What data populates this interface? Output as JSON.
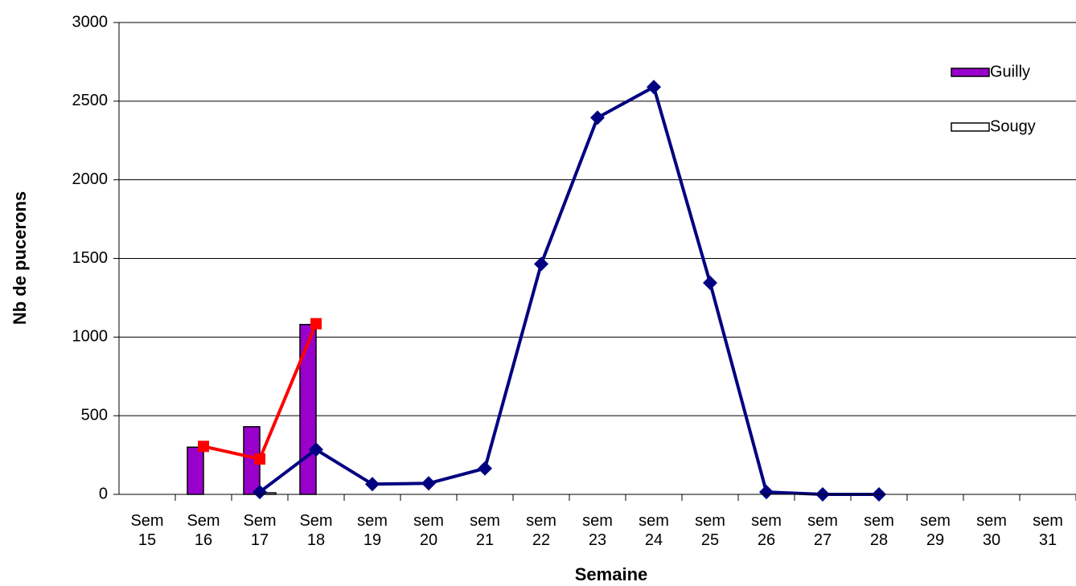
{
  "chart_data": {
    "type": "bar",
    "x_label": "Semaine",
    "y_label": "Nb de pucerons",
    "categories": [
      "Sem 15",
      "Sem 16",
      "Sem 17",
      "Sem 18",
      "sem 19",
      "sem 20",
      "sem 21",
      "sem 22",
      "sem 23",
      "sem 24",
      "sem 25",
      "sem 26",
      "sem 27",
      "sem 28",
      "sem 29",
      "sem 30",
      "sem 31"
    ],
    "series": [
      {
        "name": "Guilly",
        "type": "bar",
        "color": "#9900cc",
        "values": [
          null,
          300,
          430,
          1080,
          null,
          null,
          null,
          null,
          null,
          null,
          null,
          null,
          null,
          null,
          null,
          null,
          null
        ]
      },
      {
        "name": "Sougy",
        "type": "bar",
        "color": "#ffffff",
        "values": [
          null,
          null,
          10,
          null,
          null,
          null,
          null,
          null,
          null,
          null,
          null,
          null,
          null,
          null,
          null,
          null,
          null
        ]
      },
      {
        "type": "line",
        "color": "#ff0000",
        "marker": "square",
        "values": [
          null,
          305,
          225,
          1085,
          null,
          null,
          null,
          null,
          null,
          null,
          null,
          null,
          null,
          null,
          null,
          null,
          null
        ]
      },
      {
        "type": "line",
        "color": "#000080",
        "marker": "diamond",
        "values": [
          null,
          null,
          15,
          285,
          65,
          70,
          165,
          1465,
          2395,
          2590,
          1345,
          15,
          0,
          0,
          null,
          null,
          null
        ]
      }
    ],
    "ylim": [
      0,
      3000
    ],
    "yticks": [
      0,
      500,
      1000,
      1500,
      2000,
      2500,
      3000
    ],
    "grid": true
  }
}
